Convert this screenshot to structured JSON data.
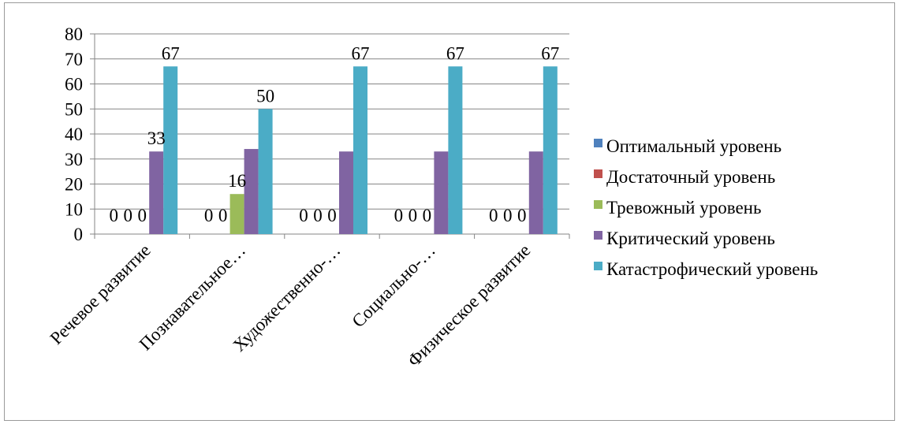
{
  "chart_data": {
    "type": "bar",
    "title": "",
    "xlabel": "",
    "ylabel": "",
    "ylim": [
      0,
      80
    ],
    "yticks": [
      0,
      10,
      20,
      30,
      40,
      50,
      60,
      70,
      80
    ],
    "grid": true,
    "legend_position": "right",
    "categories": [
      "Речевое развитие",
      "Познавательное…",
      "Художественно-…",
      "Социально-…",
      "Физическое развитие"
    ],
    "series": [
      {
        "name": "Оптимальный уровень",
        "color": "#4f81bd",
        "values": [
          0,
          0,
          0,
          0,
          0
        ]
      },
      {
        "name": "Достаточный уровень",
        "color": "#c0504d",
        "values": [
          0,
          0,
          0,
          0,
          0
        ]
      },
      {
        "name": "Тревожный уровень",
        "color": "#9bbb59",
        "values": [
          0,
          16,
          0,
          0,
          0
        ]
      },
      {
        "name": "Критический уровень",
        "color": "#8064a2",
        "values": [
          33,
          34,
          33,
          33,
          33
        ]
      },
      {
        "name": "Катастрофический уровень",
        "color": "#4bacc6",
        "values": [
          67,
          50,
          67,
          67,
          67
        ]
      }
    ],
    "data_labels": [
      [
        "0",
        "0",
        "0",
        "33",
        "67"
      ],
      [
        "0",
        "0",
        "16",
        "",
        "50"
      ],
      [
        "0",
        "0",
        "0",
        "",
        "67"
      ],
      [
        "0",
        "0",
        "0",
        "",
        "67"
      ],
      [
        "0",
        "0",
        "0",
        "",
        "67"
      ]
    ]
  }
}
